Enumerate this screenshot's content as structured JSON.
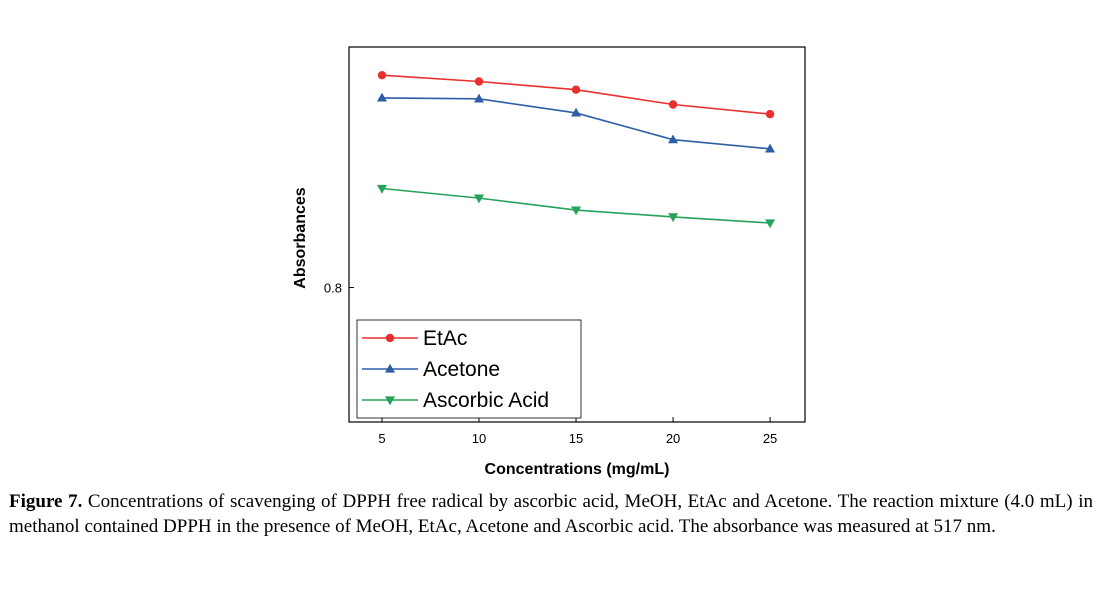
{
  "chart_data": {
    "type": "line",
    "xlabel": "Concentrations (mg/mL)",
    "ylabel": "Absorbances",
    "x": [
      5,
      10,
      15,
      20,
      25
    ],
    "x_ticks": [
      "5",
      "10",
      "15",
      "20",
      "25"
    ],
    "y_ticks": [
      0.8
    ],
    "y_tick_labels": [
      "0.8"
    ],
    "xlim": [
      3.3,
      26.8
    ],
    "ylim": [
      0.7427,
      0.9025
    ],
    "grid": false,
    "legend_position": "bottom-left",
    "series": [
      {
        "name": "EtAc",
        "color": "#e8312f",
        "marker": "circle",
        "values": [
          0.8905,
          0.8878,
          0.8843,
          0.878,
          0.8739
        ]
      },
      {
        "name": "Acetone",
        "color": "#2e5ea6",
        "marker": "triangle-up",
        "values": [
          0.8808,
          0.8804,
          0.8744,
          0.863,
          0.8591
        ]
      },
      {
        "name": "Ascorbic Acid",
        "color": "#25a35a",
        "marker": "triangle-down",
        "values": [
          0.8422,
          0.8381,
          0.833,
          0.8301,
          0.8275
        ]
      }
    ]
  },
  "caption": {
    "label": "Figure 7.",
    "text": " Concentrations of scavenging of DPPH free radical by ascorbic acid, MeOH, EtAc and Acetone. The reaction mixture (4.0 mL) in methanol contained DPPH in the presence of MeOH, EtAc, Acetone and Ascorbic acid. The absorbance was measured at 517 nm."
  }
}
